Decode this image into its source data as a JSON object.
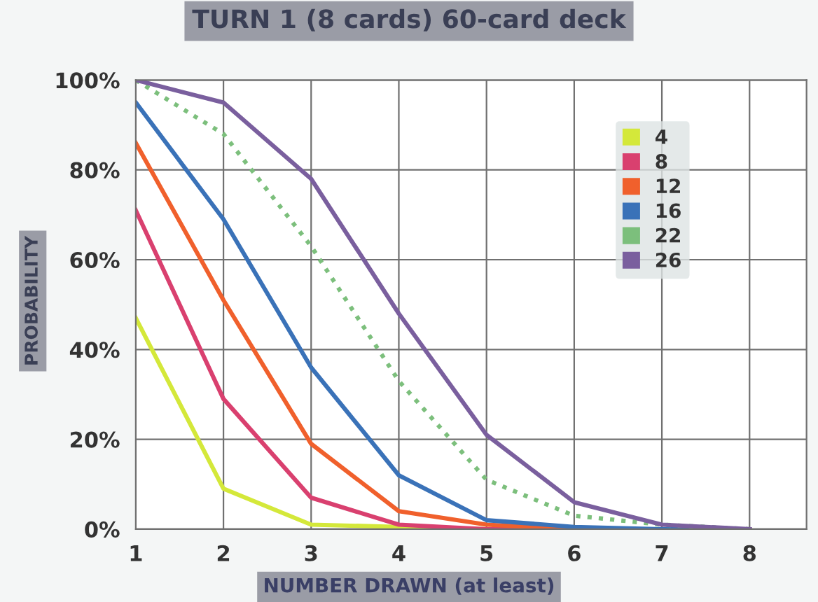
{
  "chart_data": {
    "type": "line",
    "title": "TURN 1 (8 cards) 60-card deck",
    "xlabel": "NUMBER DRAWN (at least)",
    "ylabel": "PROBABILITY",
    "x": [
      1,
      2,
      3,
      4,
      5,
      6,
      7,
      8
    ],
    "series": [
      {
        "name": "4",
        "color": "#d4e83a",
        "values": [
          47,
          9,
          1,
          0.5,
          0,
          null,
          null,
          null
        ]
      },
      {
        "name": "8",
        "color": "#d9406f",
        "values": [
          71,
          29,
          7,
          1,
          0,
          0,
          0,
          0
        ]
      },
      {
        "name": "12",
        "color": "#f0602c",
        "values": [
          86,
          51,
          19,
          4,
          1,
          0,
          0,
          0
        ]
      },
      {
        "name": "16",
        "color": "#3a72b8",
        "values": [
          95,
          69,
          36,
          12,
          2,
          0.5,
          0,
          0
        ]
      },
      {
        "name": "22",
        "color": "#7cbf7c",
        "line_style": "dotted",
        "values": [
          100,
          88,
          63,
          33,
          11,
          3,
          1,
          0
        ]
      },
      {
        "name": "26",
        "color": "#7a5f9e",
        "values": [
          100,
          95,
          78,
          48,
          21,
          6,
          1,
          0
        ]
      }
    ],
    "xlim": [
      1,
      8.65
    ],
    "xticks": [
      1,
      2,
      3,
      4,
      5,
      6,
      7,
      8
    ],
    "ylim": [
      0,
      100
    ],
    "yticks": [
      {
        "value": 0,
        "label": "0%"
      },
      {
        "value": 20,
        "label": "20%"
      },
      {
        "value": 40,
        "label": "40%"
      },
      {
        "value": 60,
        "label": "60%"
      },
      {
        "value": 80,
        "label": "80%"
      },
      {
        "value": 100,
        "label": "100%"
      }
    ],
    "grid": true,
    "legend": "top right",
    "marker": "none",
    "line_style": "solid"
  }
}
